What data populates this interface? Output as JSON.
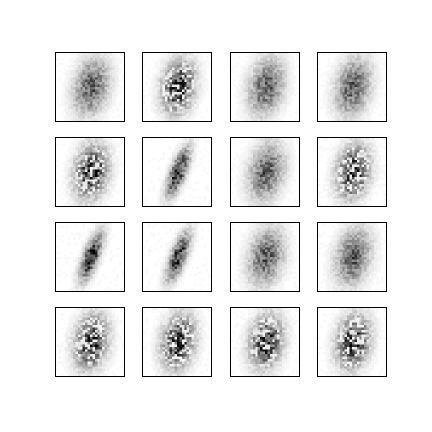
{
  "figure": {
    "background": "#ffffff",
    "frame_color": "#000000",
    "ink_color": "#000000",
    "grid": {
      "rows": 4,
      "cols": 4
    },
    "samples": [
      {
        "row": 0,
        "col": 0,
        "style": "soft"
      },
      {
        "row": 0,
        "col": 1,
        "style": "blocky"
      },
      {
        "row": 0,
        "col": 2,
        "style": "soft"
      },
      {
        "row": 0,
        "col": 3,
        "style": "soft"
      },
      {
        "row": 1,
        "col": 0,
        "style": "blocky"
      },
      {
        "row": 1,
        "col": 1,
        "style": "thin"
      },
      {
        "row": 1,
        "col": 2,
        "style": "soft"
      },
      {
        "row": 1,
        "col": 3,
        "style": "blocky"
      },
      {
        "row": 2,
        "col": 0,
        "style": "thin"
      },
      {
        "row": 2,
        "col": 1,
        "style": "thin"
      },
      {
        "row": 2,
        "col": 2,
        "style": "soft"
      },
      {
        "row": 2,
        "col": 3,
        "style": "soft"
      },
      {
        "row": 3,
        "col": 0,
        "style": "blocky"
      },
      {
        "row": 3,
        "col": 1,
        "style": "blocky"
      },
      {
        "row": 3,
        "col": 2,
        "style": "blocky"
      },
      {
        "row": 3,
        "col": 3,
        "style": "blocky"
      }
    ]
  }
}
